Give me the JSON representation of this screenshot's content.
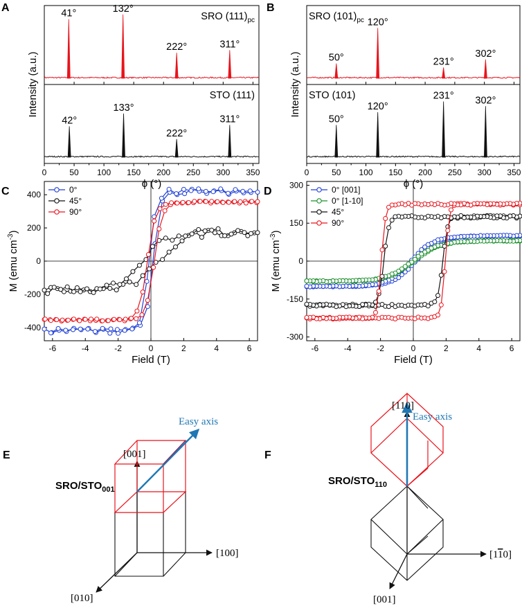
{
  "colors": {
    "red": "#e8141c",
    "black": "#111111",
    "blue": "#1f3fd6",
    "green": "#1a8f2a",
    "easy": "#1f77b4"
  },
  "chart_data": [
    {
      "id": "A",
      "panel_label": "A",
      "type": "line",
      "xlabel": "ϕ (°)",
      "ylabel": "Intensity (a.u.)",
      "xlim": [
        0,
        360
      ],
      "xticks": [
        0,
        50,
        100,
        150,
        200,
        250,
        300,
        350
      ],
      "grid": false,
      "subplots": [
        {
          "label": "SRO (111)",
          "label_sub": "pc",
          "color": "red",
          "peaks": [
            {
              "x": 41,
              "height": 0.88,
              "text": "41°"
            },
            {
              "x": 132,
              "height": 0.95,
              "text": "132°"
            },
            {
              "x": 222,
              "height": 0.38,
              "text": "222°"
            },
            {
              "x": 311,
              "height": 0.42,
              "text": "311°"
            }
          ]
        },
        {
          "label": "STO (111)",
          "label_sub": "",
          "color": "black",
          "peaks": [
            {
              "x": 42,
              "height": 0.46,
              "text": "42°"
            },
            {
              "x": 133,
              "height": 0.65,
              "text": "133°"
            },
            {
              "x": 222,
              "height": 0.27,
              "text": "222°"
            },
            {
              "x": 311,
              "height": 0.48,
              "text": "311°"
            }
          ]
        }
      ]
    },
    {
      "id": "B",
      "panel_label": "B",
      "type": "line",
      "xlabel": "ϕ (°)",
      "ylabel": "Intensity (a.u.)",
      "xlim": [
        0,
        360
      ],
      "xticks": [
        0,
        50,
        100,
        150,
        200,
        250,
        300,
        350
      ],
      "grid": false,
      "subplots": [
        {
          "label": "SRO (101)",
          "label_sub": "pc",
          "color": "red",
          "peaks": [
            {
              "x": 50,
              "height": 0.22,
              "text": "50°"
            },
            {
              "x": 120,
              "height": 0.75,
              "text": "120°"
            },
            {
              "x": 231,
              "height": 0.16,
              "text": "231°"
            },
            {
              "x": 302,
              "height": 0.28,
              "text": "302°"
            }
          ]
        },
        {
          "label": "STO (101)",
          "label_sub": "",
          "color": "black",
          "peaks": [
            {
              "x": 50,
              "height": 0.48,
              "text": "50°"
            },
            {
              "x": 120,
              "height": 0.67,
              "text": "120°"
            },
            {
              "x": 231,
              "height": 0.83,
              "text": "231°"
            },
            {
              "x": 302,
              "height": 0.76,
              "text": "302°"
            }
          ]
        }
      ]
    },
    {
      "id": "C",
      "panel_label": "C",
      "type": "line",
      "xlabel": "Field (T)",
      "ylabel": "M (emu cm",
      "ylabel_sup": "-3",
      "ylabel_close": ")",
      "xlim": [
        -6.5,
        6.5
      ],
      "ylim": [
        -480,
        480
      ],
      "xticks": [
        -6,
        -4,
        -2,
        0,
        2,
        4,
        6
      ],
      "yticks": [
        -400,
        -200,
        0,
        200,
        400
      ],
      "grid": false,
      "legend_position": "top-left",
      "series": [
        {
          "name": "0°",
          "color": "blue",
          "Ms": 420,
          "Hc": 0.12,
          "w": 0.45,
          "noise": 18,
          "step": 0.45
        },
        {
          "name": "45°",
          "color": "black",
          "Ms": 175,
          "Hc": 0.5,
          "w": 1.5,
          "noise": 22,
          "step": 0.4
        },
        {
          "name": "90°",
          "color": "red",
          "Ms": 355,
          "Hc": 0.2,
          "w": 0.5,
          "noise": 6,
          "step": 0.35
        }
      ]
    },
    {
      "id": "D",
      "panel_label": "D",
      "type": "line",
      "xlabel": "Field (T)",
      "ylabel": "M (emu cm",
      "ylabel_sup": "-3",
      "ylabel_close": ")",
      "xlim": [
        -6.5,
        6.5
      ],
      "ylim": [
        -315,
        315
      ],
      "xticks": [
        -6,
        -4,
        -2,
        0,
        2,
        4,
        6
      ],
      "yticks": [
        -300,
        -150,
        0,
        150,
        300
      ],
      "grid": false,
      "legend_position": "top-left",
      "series": [
        {
          "name": "0° [001]",
          "color": "blue",
          "Ms": 100,
          "Hc": 0.15,
          "w": 1.4,
          "noise": 2,
          "step": 0.2
        },
        {
          "name": "0° [1-10]",
          "color": "green",
          "Ms": 80,
          "Hc": 0.05,
          "w": 1.6,
          "noise": 2,
          "step": 0.2
        },
        {
          "name": "45°",
          "color": "black",
          "Ms": 175,
          "Hc": 1.8,
          "w": 0.3,
          "noise": 5,
          "step": 0.2
        },
        {
          "name": "90°",
          "color": "red",
          "Ms": 225,
          "Hc": 1.95,
          "w": 0.25,
          "noise": 4,
          "step": 0.2
        }
      ]
    }
  ],
  "panel_e": {
    "label": "E",
    "title": "SRO/STO",
    "title_sub": "001",
    "axis_up": "[001]",
    "axis_right": "[100]",
    "axis_down": "[010]",
    "easy_axis": "Easy axis"
  },
  "panel_f": {
    "label": "F",
    "title": "SRO/STO",
    "title_sub": "110",
    "axis_up": "[110]",
    "axis_right_pre": "[1",
    "axis_right_bar": "1",
    "axis_right_post": "0]",
    "axis_down": "[001]",
    "easy_axis": "Easy axis"
  }
}
